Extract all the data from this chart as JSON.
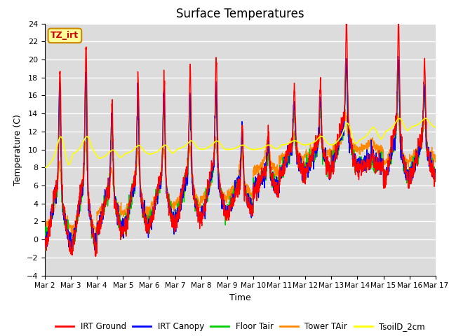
{
  "title": "Surface Temperatures",
  "xlabel": "Time",
  "ylabel": "Temperature (C)",
  "ylim": [
    -4,
    24
  ],
  "yticks": [
    -4,
    -2,
    0,
    2,
    4,
    6,
    8,
    10,
    12,
    14,
    16,
    18,
    20,
    22,
    24
  ],
  "xtick_labels": [
    "Mar 2",
    "Mar 3",
    "Mar 4",
    "Mar 5",
    "Mar 6",
    "Mar 7",
    "Mar 8",
    "Mar 9",
    "Mar 10",
    "Mar 11",
    "Mar 12",
    "Mar 13",
    "Mar 14",
    "Mar 15",
    "Mar 16",
    "Mar 17"
  ],
  "series": {
    "IRT Ground": {
      "color": "#ff0000",
      "lw": 1.0
    },
    "IRT Canopy": {
      "color": "#0000ff",
      "lw": 1.0
    },
    "Floor Tair": {
      "color": "#00cc00",
      "lw": 1.0
    },
    "Tower TAir": {
      "color": "#ff8800",
      "lw": 1.0
    },
    "TsoilD_2cm": {
      "color": "#ffff00",
      "lw": 1.2
    }
  },
  "annotation_text": "TZ_irt",
  "annotation_color": "#cc0000",
  "annotation_bg": "#ffff99",
  "annotation_border": "#cc8800",
  "bg_color": "#dcdcdc",
  "n_days": 15,
  "pts_per_day": 144,
  "seed": 7
}
